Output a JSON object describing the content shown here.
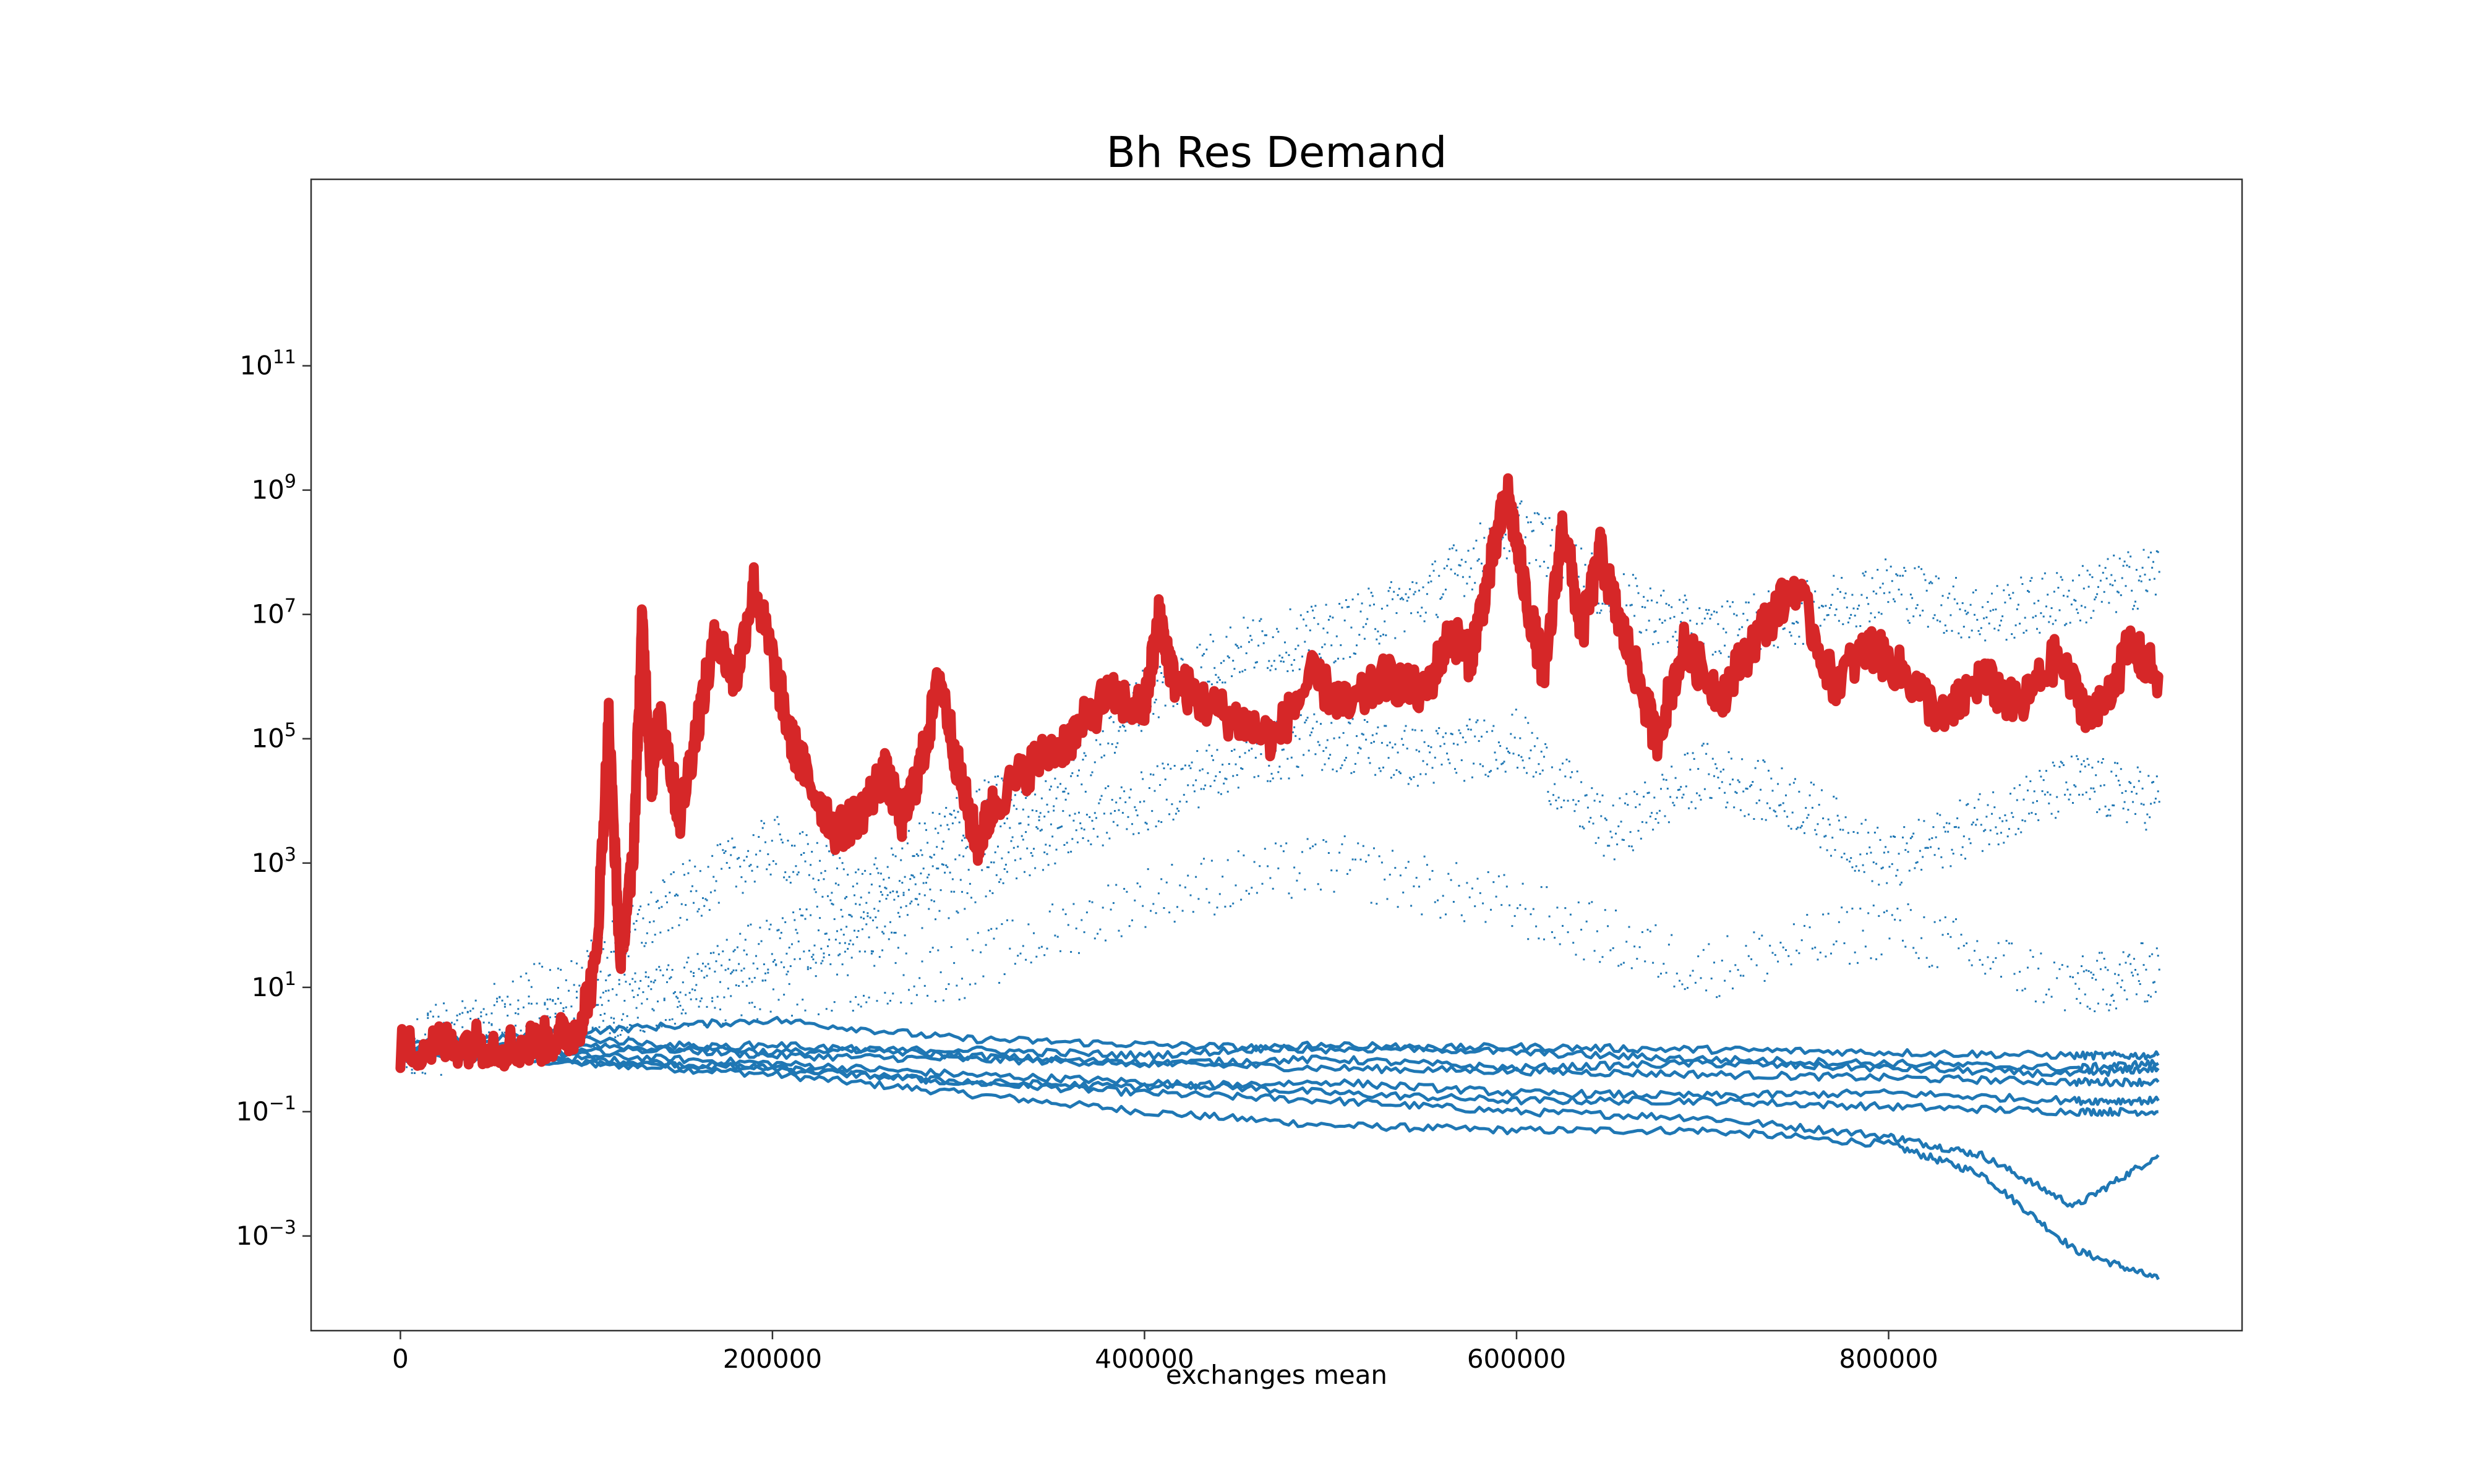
{
  "chart_data": {
    "type": "line",
    "title": "Bh Res Demand",
    "xlabel": "exchanges mean",
    "ylabel": "",
    "yscale": "log",
    "xlim": [
      -48000,
      990000
    ],
    "ylim": [
      3e-05,
      100000000000000
    ],
    "grid": false,
    "legend": "none",
    "x_ticks": [
      {
        "value": 0,
        "label": "0"
      },
      {
        "value": 200000,
        "label": "200000"
      },
      {
        "value": 400000,
        "label": "400000"
      },
      {
        "value": 600000,
        "label": "600000"
      },
      {
        "value": 800000,
        "label": "800000"
      }
    ],
    "y_ticks": [
      {
        "value": 0.001,
        "base": "10",
        "exp": "−3"
      },
      {
        "value": 0.1,
        "base": "10",
        "exp": "−1"
      },
      {
        "value": 10,
        "base": "10",
        "exp": "1"
      },
      {
        "value": 1000,
        "base": "10",
        "exp": "3"
      },
      {
        "value": 100000,
        "base": "10",
        "exp": "5"
      },
      {
        "value": 10000000,
        "base": "10",
        "exp": "7"
      },
      {
        "value": 1000000000,
        "base": "10",
        "exp": "9"
      },
      {
        "value": 100000000000,
        "base": "10",
        "exp": "11"
      }
    ],
    "colors": {
      "runs": "#1f77b4",
      "highlight": "#d62728"
    },
    "series": [
      {
        "role": "highlight-run",
        "color": "#d62728",
        "x": [
          0,
          20000,
          40000,
          60000,
          80000,
          95000,
          105000,
          112000,
          118000,
          125000,
          130000,
          135000,
          140000,
          150000,
          160000,
          170000,
          180000,
          190000,
          200000,
          210000,
          220000,
          235000,
          250000,
          260000,
          270000,
          280000,
          290000,
          300000,
          310000,
          320000,
          340000,
          360000,
          380000,
          400000,
          408000,
          415000,
          430000,
          450000,
          470000,
          490000,
          510000,
          530000,
          550000,
          565000,
          575000,
          585000,
          595000,
          605000,
          615000,
          625000,
          635000,
          645000,
          655000,
          665000,
          675000,
          690000,
          710000,
          730000,
          750000,
          770000,
          790000,
          810000,
          830000,
          850000,
          870000,
          890000,
          910000,
          930000,
          945000
        ],
        "y": [
          1,
          1.2,
          1.3,
          1.1,
          1.4,
          2,
          20,
          200000,
          30,
          1000,
          8000000,
          20000,
          300000,
          5000,
          200000,
          5000000,
          800000,
          30000000,
          2000000,
          100000,
          20000,
          3000,
          8000,
          30000,
          5000,
          40000,
          1000000,
          30000,
          2000,
          10000,
          40000,
          100000,
          500000,
          300000,
          10000000,
          1000000,
          400000,
          200000,
          100000,
          1000000,
          300000,
          1000000,
          500000,
          5000000,
          2000000,
          40000000,
          1000000000,
          20000000,
          1000000,
          300000000,
          5000000,
          100000000,
          8000000,
          1000000,
          100000,
          3000000,
          500000,
          5000000,
          30000000,
          800000,
          3000000,
          1000000,
          200000,
          1000000,
          300000,
          2000000,
          200000,
          3000000,
          1000000
        ]
      },
      {
        "role": "run",
        "color": "#1f77b4",
        "x": [
          0,
          100000,
          200000,
          300000,
          400000,
          500000,
          600000,
          700000,
          800000,
          850000,
          900000,
          945000
        ],
        "y": [
          0.8,
          0.6,
          0.4,
          0.2,
          0.1,
          0.06,
          0.05,
          0.05,
          0.03,
          0.01,
          0.0006,
          0.0002
        ]
      },
      {
        "role": "run",
        "color": "#1f77b4",
        "x": [
          0,
          100000,
          200000,
          300000,
          400000,
          500000,
          600000,
          700000,
          800000,
          850000,
          900000,
          945000
        ],
        "y": [
          0.9,
          0.7,
          0.5,
          0.3,
          0.2,
          0.15,
          0.1,
          0.08,
          0.04,
          0.02,
          0.003,
          0.02
        ]
      },
      {
        "role": "run",
        "color": "#1f77b4",
        "x": [
          0,
          100000,
          200000,
          300000,
          400000,
          500000,
          600000,
          700000,
          800000,
          900000,
          945000
        ],
        "y": [
          1,
          0.8,
          0.6,
          0.4,
          0.3,
          0.2,
          0.15,
          0.15,
          0.12,
          0.1,
          0.1
        ]
      },
      {
        "role": "run",
        "color": "#1f77b4",
        "x": [
          0,
          100000,
          200000,
          300000,
          400000,
          500000,
          600000,
          700000,
          800000,
          900000,
          945000
        ],
        "y": [
          1,
          1.2,
          0.8,
          0.7,
          0.6,
          0.5,
          0.45,
          0.4,
          0.35,
          0.3,
          0.3
        ]
      },
      {
        "role": "run",
        "color": "#1f77b4",
        "x": [
          0,
          100000,
          200000,
          300000,
          400000,
          500000,
          600000,
          700000,
          800000,
          900000,
          945000
        ],
        "y": [
          1.2,
          2,
          3,
          1.5,
          1.2,
          1,
          1.1,
          1,
          0.9,
          0.8,
          0.8
        ]
      },
      {
        "role": "run",
        "color": "#1f77b4",
        "x": [
          0,
          100000,
          200000,
          300000,
          400000,
          500000,
          600000,
          700000,
          800000,
          900000,
          945000
        ],
        "y": [
          0.9,
          0.9,
          1.2,
          0.8,
          0.6,
          0.7,
          0.5,
          0.6,
          0.5,
          0.4,
          0.5
        ]
      },
      {
        "role": "run",
        "color": "#1f77b4",
        "x": [
          0,
          100000,
          200000,
          300000,
          400000,
          500000,
          600000,
          700000,
          800000,
          900000,
          945000
        ],
        "y": [
          1,
          0.6,
          0.5,
          0.3,
          0.25,
          0.3,
          0.2,
          0.18,
          0.2,
          0.15,
          0.15
        ]
      },
      {
        "role": "run",
        "color": "#1f77b4",
        "x": [
          0,
          100000,
          200000,
          300000,
          400000,
          500000,
          600000,
          700000,
          800000,
          900000,
          945000
        ],
        "y": [
          1,
          1.5,
          0.9,
          1,
          0.8,
          1.2,
          0.9,
          0.7,
          0.6,
          0.5,
          0.6
        ]
      },
      {
        "role": "run-scatter",
        "color": "#1f77b4",
        "x": [
          0,
          100000,
          150000,
          200000,
          250000,
          300000,
          350000,
          400000,
          450000,
          500000,
          550000,
          600000,
          650000,
          700000,
          750000,
          800000,
          850000,
          900000,
          945000
        ],
        "y": [
          1,
          20,
          300,
          2000,
          300,
          5000,
          20000,
          500000,
          3000000,
          5000000,
          20000000,
          300000000,
          20000000,
          5000000,
          10000000,
          30000000,
          10000000,
          20000000,
          50000000
        ]
      },
      {
        "role": "run-scatter",
        "color": "#1f77b4",
        "x": [
          0,
          100000,
          150000,
          200000,
          250000,
          300000,
          350000,
          400000,
          450000,
          500000,
          550000,
          600000,
          650000,
          700000,
          750000,
          800000,
          850000,
          900000,
          945000
        ],
        "y": [
          1,
          3,
          10,
          50,
          100,
          500,
          3000,
          10000,
          50000,
          100000,
          50000,
          100000,
          3000,
          30000,
          10000,
          1000,
          5000,
          20000,
          10000
        ]
      },
      {
        "role": "run-scatter",
        "color": "#1f77b4",
        "x": [
          0,
          100000,
          200000,
          300000,
          400000,
          500000,
          600000,
          700000,
          800000,
          900000,
          945000
        ],
        "y": [
          1,
          5,
          10,
          20,
          300,
          1000,
          200,
          20,
          100,
          10,
          20
        ]
      }
    ]
  }
}
